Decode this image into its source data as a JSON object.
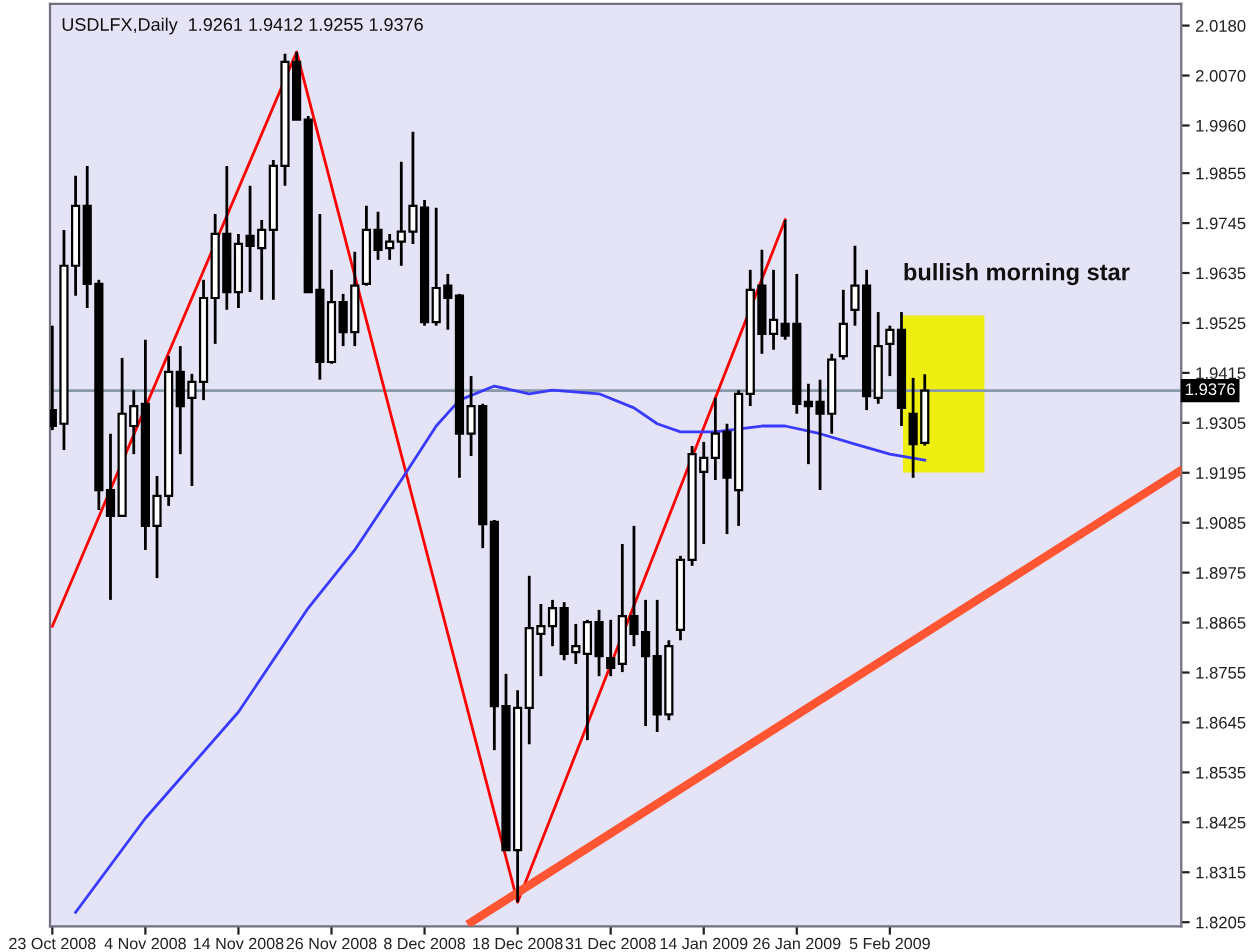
{
  "chart_data": {
    "type": "candlestick",
    "title": "USDLFX,Daily  1.9261 1.9412 1.9255 1.9376",
    "categories": [
      "23 Oct 2008",
      null,
      null,
      null,
      null,
      null,
      null,
      null,
      "4 Nov 2008",
      null,
      null,
      null,
      null,
      null,
      null,
      null,
      "14 Nov 2008",
      null,
      null,
      null,
      null,
      null,
      null,
      null,
      "26 Nov 2008",
      null,
      null,
      null,
      null,
      null,
      null,
      null,
      "8 Dec 2008",
      null,
      null,
      null,
      null,
      null,
      null,
      null,
      "18 Dec 2008",
      null,
      null,
      null,
      null,
      null,
      null,
      null,
      "31 Dec 2008",
      null,
      null,
      null,
      null,
      null,
      null,
      null,
      "14 Jan 2009",
      null,
      null,
      null,
      null,
      null,
      null,
      null,
      "26 Jan 2009",
      null,
      null,
      null,
      null,
      null,
      null,
      null,
      "5 Feb 2009",
      null,
      null,
      null,
      null,
      null,
      null,
      null,
      null,
      null,
      null,
      null,
      null,
      null,
      null,
      null,
      null,
      null,
      null,
      null,
      null,
      null,
      null,
      null,
      null,
      null
    ],
    "ohlc": [
      [
        1.9333,
        1.9519,
        1.9289,
        1.9298
      ],
      [
        1.9303,
        1.973,
        1.9245,
        1.9651
      ],
      [
        1.9651,
        1.9849,
        1.9585,
        1.9783
      ],
      [
        1.9783,
        1.9871,
        1.9558,
        1.9611
      ],
      [
        1.9611,
        1.962,
        1.9113,
        1.9157
      ],
      [
        1.9157,
        1.9281,
        1.8915,
        1.91
      ],
      [
        1.91,
        1.9448,
        1.91,
        1.9325
      ],
      [
        1.9298,
        1.9377,
        1.9236,
        1.9342
      ],
      [
        1.9347,
        1.9488,
        1.9025,
        1.9078
      ],
      [
        1.9078,
        1.9188,
        1.8963,
        1.9144
      ],
      [
        1.9144,
        1.9452,
        1.9122,
        1.9417
      ],
      [
        1.9417,
        1.9474,
        1.9236,
        1.9342
      ],
      [
        1.936,
        1.9413,
        1.9166,
        1.9395
      ],
      [
        1.9395,
        1.962,
        1.9355,
        1.958
      ],
      [
        1.958,
        1.9765,
        1.9479,
        1.9721
      ],
      [
        1.9721,
        1.9871,
        1.9554,
        1.9593
      ],
      [
        1.9593,
        1.9721,
        1.9558,
        1.9699
      ],
      [
        1.9717,
        1.9827,
        1.9593,
        1.9695
      ],
      [
        1.969,
        1.9752,
        1.9576,
        1.973
      ],
      [
        1.973,
        1.9884,
        1.9576,
        1.9871
      ],
      [
        1.9871,
        2.0118,
        1.9827,
        2.01
      ],
      [
        2.01,
        2.0122,
        1.9973,
        1.9973
      ],
      [
        1.9973,
        1.9981,
        1.9593,
        1.9593
      ],
      [
        1.9598,
        1.9765,
        1.94,
        1.9439
      ],
      [
        1.9439,
        1.9642,
        1.9435,
        1.9571
      ],
      [
        1.9571,
        1.9589,
        1.9474,
        1.9505
      ],
      [
        1.9505,
        1.9682,
        1.9474,
        1.9607
      ],
      [
        1.9611,
        1.9783,
        1.9607,
        1.973
      ],
      [
        1.973,
        1.977,
        1.9664,
        1.9686
      ],
      [
        1.969,
        1.9721,
        1.9664,
        1.9704
      ],
      [
        1.9704,
        1.988,
        1.9651,
        1.9726
      ],
      [
        1.9726,
        1.9946,
        1.9699,
        1.9783
      ],
      [
        1.9779,
        1.9796,
        1.9519,
        1.9527
      ],
      [
        1.9527,
        1.9779,
        1.9519,
        1.9602
      ],
      [
        1.9607,
        1.9633,
        1.951,
        1.958
      ],
      [
        1.9585,
        1.9589,
        1.9184,
        1.9281
      ],
      [
        1.9281,
        1.9408,
        1.9232,
        1.9342
      ],
      [
        1.9342,
        1.9347,
        1.9029,
        1.9082
      ],
      [
        1.9087,
        1.9091,
        1.8584,
        1.8681
      ],
      [
        1.8681,
        1.8752,
        1.8364,
        1.8364
      ],
      [
        1.8364,
        1.8716,
        1.8249,
        1.8677
      ],
      [
        1.8677,
        1.8968,
        1.8597,
        1.8853
      ],
      [
        1.884,
        1.8906,
        1.8747,
        1.8857
      ],
      [
        1.8857,
        1.8915,
        1.8813,
        1.8897
      ],
      [
        1.8897,
        1.891,
        1.8782,
        1.8796
      ],
      [
        1.88,
        1.8862,
        1.8774,
        1.8813
      ],
      [
        1.8796,
        1.8871,
        1.8606,
        1.8866
      ],
      [
        1.8866,
        1.8893,
        1.8747,
        1.8791
      ],
      [
        1.8787,
        1.8871,
        1.8747,
        1.8765
      ],
      [
        1.8774,
        1.9038,
        1.8756,
        1.8879
      ],
      [
        1.8879,
        1.9078,
        1.8813,
        1.884
      ],
      [
        1.8844,
        1.8915,
        1.8637,
        1.8791
      ],
      [
        1.8791,
        1.8915,
        1.8624,
        1.8663
      ],
      [
        1.8663,
        1.8826,
        1.865,
        1.8813
      ],
      [
        1.8849,
        1.9012,
        1.8826,
        1.9003
      ],
      [
        1.9003,
        1.9254,
        1.899,
        1.9236
      ],
      [
        1.9197,
        1.9263,
        1.9038,
        1.9228
      ],
      [
        1.9228,
        1.936,
        1.9179,
        1.9281
      ],
      [
        1.9285,
        1.9303,
        1.906,
        1.9184
      ],
      [
        1.9157,
        1.9377,
        1.9078,
        1.9369
      ],
      [
        1.9369,
        1.9642,
        1.9342,
        1.9598
      ],
      [
        1.9607,
        1.9686,
        1.9457,
        1.9501
      ],
      [
        1.9501,
        1.9642,
        1.9466,
        1.9532
      ],
      [
        1.9523,
        1.9752,
        1.9488,
        1.9497
      ],
      [
        1.9523,
        1.9633,
        1.9325,
        1.9347
      ],
      [
        1.9351,
        1.9391,
        1.9214,
        1.9342
      ],
      [
        1.9351,
        1.94,
        1.9157,
        1.9325
      ],
      [
        1.9325,
        1.9457,
        1.9281,
        1.9444
      ],
      [
        1.9452,
        1.9598,
        1.9444,
        1.9523
      ],
      [
        1.9554,
        1.9695,
        1.9519,
        1.9607
      ],
      [
        1.9607,
        1.9642,
        1.9333,
        1.9364
      ],
      [
        1.936,
        1.9549,
        1.9347,
        1.9474
      ],
      [
        1.9479,
        1.9519,
        1.9408,
        1.951
      ],
      [
        1.951,
        1.9549,
        1.9298,
        1.9338
      ],
      [
        1.9325,
        1.9404,
        1.9184,
        1.9258
      ],
      [
        1.9261,
        1.9412,
        1.9255,
        1.9376
      ],
      null,
      null,
      null,
      null,
      null,
      null,
      null,
      null,
      null,
      null,
      null,
      null,
      null,
      null,
      null,
      null,
      null,
      null,
      null,
      null,
      null,
      null
    ],
    "series": [
      {
        "type": "line",
        "color": "#ff0000",
        "values": [
          1.8857,
          null,
          null,
          null,
          null,
          null,
          null,
          null,
          null,
          null,
          null,
          null,
          null,
          null,
          null,
          null,
          null,
          null,
          null,
          null,
          null,
          2.0122,
          null,
          null,
          null,
          null,
          null,
          null,
          null,
          null,
          null,
          null,
          null,
          null,
          null,
          null,
          null,
          null,
          null,
          null,
          1.8249,
          null,
          null,
          null,
          null,
          null,
          null,
          null,
          null,
          null,
          null,
          null,
          null,
          null,
          null,
          null,
          null,
          null,
          null,
          null,
          null,
          null,
          null,
          1.9752,
          null,
          null,
          null,
          null,
          null,
          null,
          null,
          null,
          null,
          null,
          null,
          null,
          null,
          null,
          null,
          null,
          null,
          null,
          null,
          null,
          null,
          null,
          null,
          null,
          null,
          null,
          null,
          null,
          null,
          null,
          null,
          null,
          null,
          null
        ]
      },
      {
        "type": "line",
        "color": "#3a3aff",
        "values": [
          null,
          null,
          1.8227,
          null,
          null,
          null,
          null,
          null,
          1.8434,
          null,
          null,
          null,
          null,
          null,
          null,
          null,
          1.8668,
          null,
          null,
          null,
          null,
          null,
          1.8897,
          null,
          null,
          null,
          1.9025,
          null,
          null,
          null,
          1.9179,
          null,
          null,
          1.9298,
          null,
          1.9355,
          null,
          null,
          1.9386,
          null,
          null,
          1.9369,
          null,
          1.9377,
          null,
          null,
          null,
          1.9369,
          null,
          null,
          1.9338,
          null,
          1.9303,
          null,
          1.9285,
          null,
          null,
          1.9285,
          null,
          null,
          null,
          1.9298,
          null,
          1.9298,
          null,
          null,
          1.9281,
          null,
          null,
          1.9258,
          null,
          null,
          1.9236,
          null,
          null,
          1.9223,
          null,
          null,
          null,
          null,
          null,
          null,
          null,
          null,
          null,
          null,
          null,
          null,
          null,
          null,
          null,
          null,
          null,
          null,
          null,
          null,
          null,
          null
        ]
      },
      {
        "type": "line",
        "color": "#ff5533",
        "values": [
          null,
          null,
          null,
          null,
          null,
          null,
          null,
          null,
          null,
          null,
          null,
          null,
          null,
          null,
          null,
          null,
          null,
          null,
          null,
          null,
          null,
          null,
          null,
          null,
          null,
          null,
          null,
          null,
          null,
          null,
          null,
          null,
          null,
          null,
          null,
          null,
          1.8205,
          null,
          null,
          null,
          null,
          null,
          null,
          null,
          null,
          null,
          null,
          null,
          null,
          null,
          null,
          null,
          null,
          null,
          null,
          null,
          null,
          null,
          null,
          null,
          null,
          null,
          null,
          null,
          null,
          null,
          null,
          null,
          null,
          null,
          null,
          null,
          null,
          null,
          null,
          null,
          null,
          null,
          null,
          null,
          null,
          null,
          null,
          null,
          null,
          null,
          null,
          null,
          null,
          null,
          null,
          null,
          null,
          null,
          null,
          null,
          null,
          1.92
        ]
      }
    ],
    "ylim": [
      1.8196,
      2.0228
    ],
    "yticks": [
      {
        "value": 2.018,
        "label": "2.0180"
      },
      {
        "value": 2.007,
        "label": "2.0070"
      },
      {
        "value": 1.996,
        "label": "1.9960"
      },
      {
        "value": 1.9855,
        "label": "1.9855"
      },
      {
        "value": 1.9745,
        "label": "1.9745"
      },
      {
        "value": 1.9635,
        "label": "1.9635"
      },
      {
        "value": 1.9525,
        "label": "1.9525"
      },
      {
        "value": 1.9415,
        "label": "1.9415"
      },
      {
        "value": 1.9305,
        "label": "1.9305"
      },
      {
        "value": 1.9195,
        "label": "1.9195"
      },
      {
        "value": 1.9085,
        "label": "1.9085"
      },
      {
        "value": 1.8975,
        "label": "1.8975"
      },
      {
        "value": 1.8865,
        "label": "1.8865"
      },
      {
        "value": 1.8755,
        "label": "1.8755"
      },
      {
        "value": 1.8645,
        "label": "1.8645"
      },
      {
        "value": 1.8535,
        "label": "1.8535"
      },
      {
        "value": 1.8425,
        "label": "1.8425"
      },
      {
        "value": 1.8315,
        "label": "1.8315"
      },
      {
        "value": 1.8205,
        "label": "1.8205"
      }
    ],
    "ref_lines": [
      {
        "axis": "y",
        "value": 1.9376,
        "label": "1.9376",
        "color": "#8a9aaa"
      }
    ],
    "annotations": [
      "bullish morning star"
    ]
  }
}
